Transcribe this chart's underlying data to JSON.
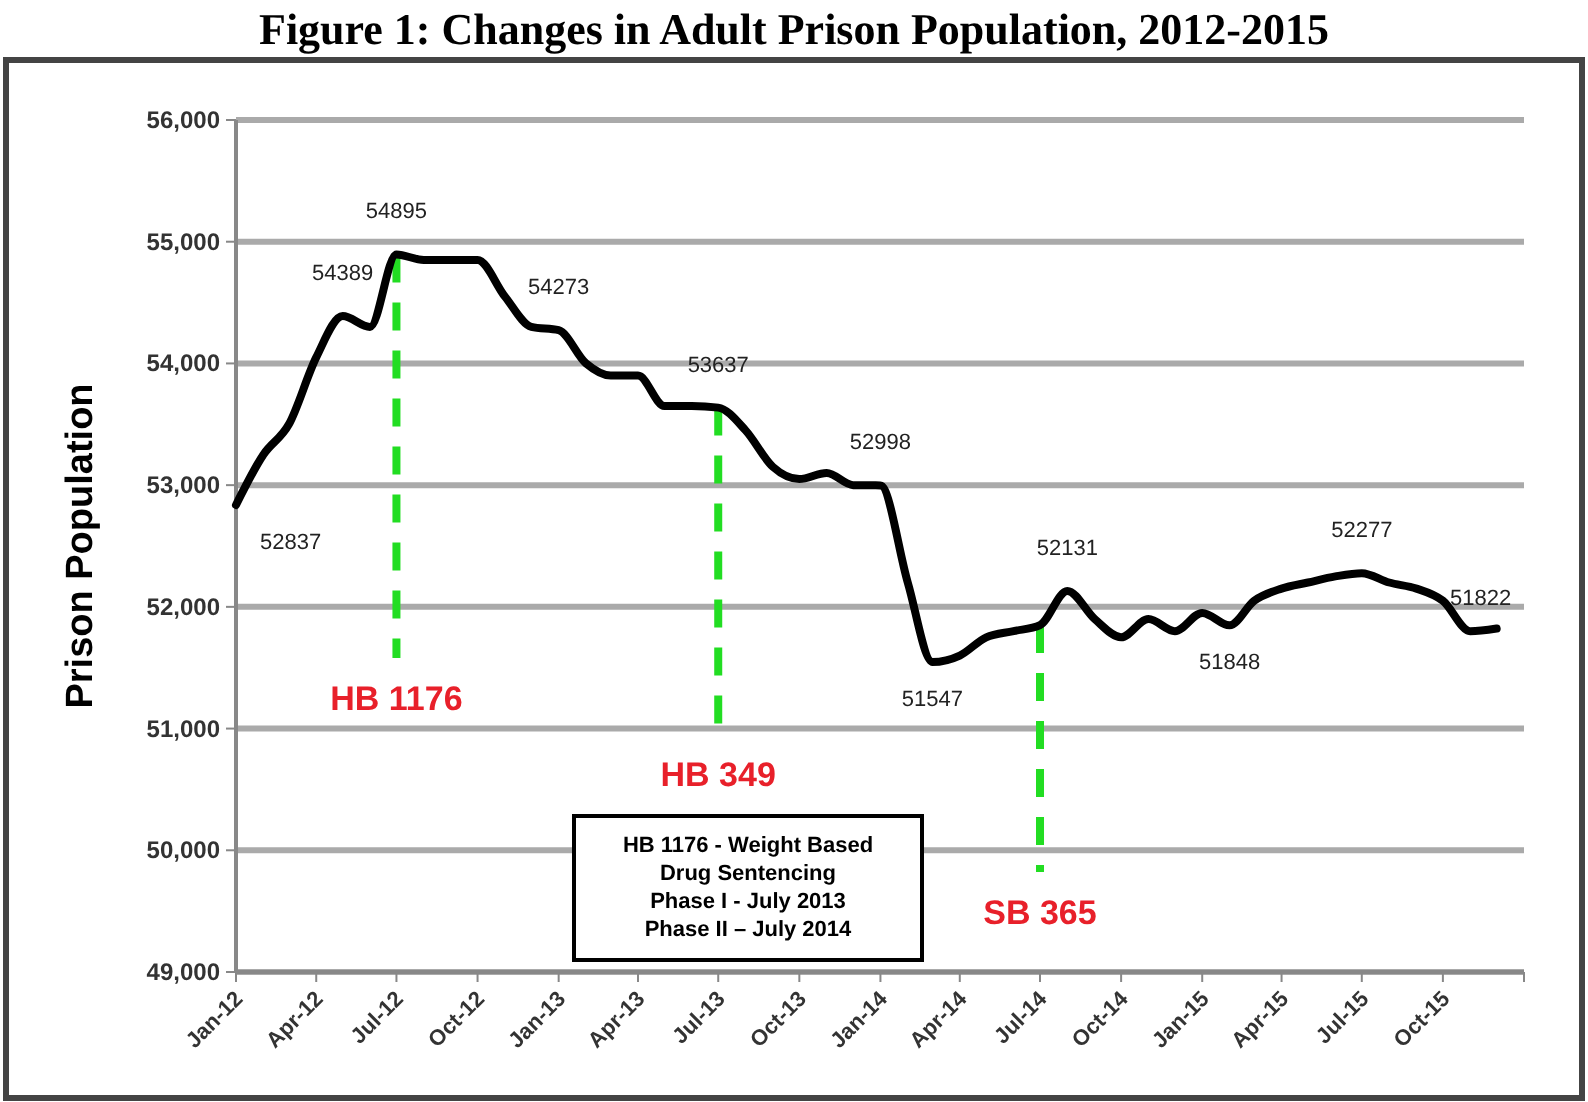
{
  "chart_data": {
    "type": "line",
    "title": "Figure 1: Changes in Adult Prison Population, 2012-2015",
    "ylabel": "Prison Population",
    "x": [
      "2012-01",
      "2012-02",
      "2012-03",
      "2012-04",
      "2012-05",
      "2012-06",
      "2012-07",
      "2012-08",
      "2012-09",
      "2012-10",
      "2012-11",
      "2012-12",
      "2013-01",
      "2013-02",
      "2013-03",
      "2013-04",
      "2013-05",
      "2013-06",
      "2013-07",
      "2013-08",
      "2013-09",
      "2013-10",
      "2013-11",
      "2013-12",
      "2014-01",
      "2014-02",
      "2014-03",
      "2014-04",
      "2014-05",
      "2014-06",
      "2014-07",
      "2014-08",
      "2014-09",
      "2014-10",
      "2014-11",
      "2014-12",
      "2015-01",
      "2015-02",
      "2015-03",
      "2015-04",
      "2015-05",
      "2015-06",
      "2015-07",
      "2015-08",
      "2015-09",
      "2015-10",
      "2015-11",
      "2015-12"
    ],
    "series": [
      {
        "color": "#000000",
        "values": [
          52837,
          53250,
          53500,
          54050,
          54389,
          54300,
          54895,
          54850,
          54850,
          54850,
          54550,
          54300,
          54273,
          54000,
          53900,
          53900,
          53650,
          53650,
          53637,
          53450,
          53150,
          53050,
          53100,
          53000,
          52998,
          52200,
          51547,
          51600,
          51750,
          51800,
          51850,
          52131,
          51900,
          51750,
          51900,
          51800,
          51950,
          51848,
          52050,
          52150,
          52200,
          52250,
          52277,
          52200,
          52150,
          52050,
          51800,
          51822
        ],
        "value_labels": [
          "52837",
          null,
          null,
          null,
          "54389",
          null,
          "54895",
          null,
          null,
          null,
          null,
          null,
          "54273",
          null,
          null,
          null,
          null,
          null,
          "53637",
          null,
          null,
          null,
          null,
          null,
          "52998",
          null,
          "51547",
          null,
          null,
          null,
          null,
          "52131",
          null,
          null,
          null,
          null,
          null,
          "51848",
          null,
          null,
          null,
          null,
          "52277",
          null,
          null,
          null,
          null,
          "51822"
        ]
      }
    ],
    "xlim": [
      "2012-01",
      "2016-01"
    ],
    "xticks": [
      {
        "value": "2012-01",
        "label": "Jan-12"
      },
      {
        "value": "2012-04",
        "label": "Apr-12"
      },
      {
        "value": "2012-07",
        "label": "Jul-12"
      },
      {
        "value": "2012-10",
        "label": "Oct-12"
      },
      {
        "value": "2013-01",
        "label": "Jan-13"
      },
      {
        "value": "2013-04",
        "label": "Apr-13"
      },
      {
        "value": "2013-07",
        "label": "Jul-13"
      },
      {
        "value": "2013-10",
        "label": "Oct-13"
      },
      {
        "value": "2014-01",
        "label": "Jan-14"
      },
      {
        "value": "2014-04",
        "label": "Apr-14"
      },
      {
        "value": "2014-07",
        "label": "Jul-14"
      },
      {
        "value": "2014-10",
        "label": "Oct-14"
      },
      {
        "value": "2015-01",
        "label": "Jan-15"
      },
      {
        "value": "2015-04",
        "label": "Apr-15"
      },
      {
        "value": "2015-07",
        "label": "Jul-15"
      },
      {
        "value": "2015-10",
        "label": "Oct-15"
      },
      {
        "value": "2016-01",
        "label": null
      }
    ],
    "ylim": [
      49000,
      56000
    ],
    "yticks": [
      {
        "value": 49000,
        "label": "49,000"
      },
      {
        "value": 50000,
        "label": "50,000"
      },
      {
        "value": 51000,
        "label": "51,000"
      },
      {
        "value": 52000,
        "label": "52,000"
      },
      {
        "value": 53000,
        "label": "53,000"
      },
      {
        "value": 54000,
        "label": "54,000"
      },
      {
        "value": 55000,
        "label": "55,000"
      },
      {
        "value": 56000,
        "label": "56,000"
      }
    ],
    "grid": "y",
    "marker": "none",
    "line_style": "solid",
    "ref_lines": [
      {
        "axis": "x",
        "value": "2012-07",
        "label": "HB 1176",
        "color": "#22dd22",
        "line_style": "dashed"
      },
      {
        "axis": "x",
        "value": "2013-07",
        "label": "HB 349",
        "color": "#22dd22",
        "line_style": "dashed"
      },
      {
        "axis": "x",
        "value": "2014-07",
        "label": "SB 365",
        "color": "#22dd22",
        "line_style": "dashed"
      }
    ],
    "annotations": [
      "HB 1176 - Weight Based\nDrug Sentencing\nPhase I - July 2013\nPhase II – July 2014"
    ]
  }
}
